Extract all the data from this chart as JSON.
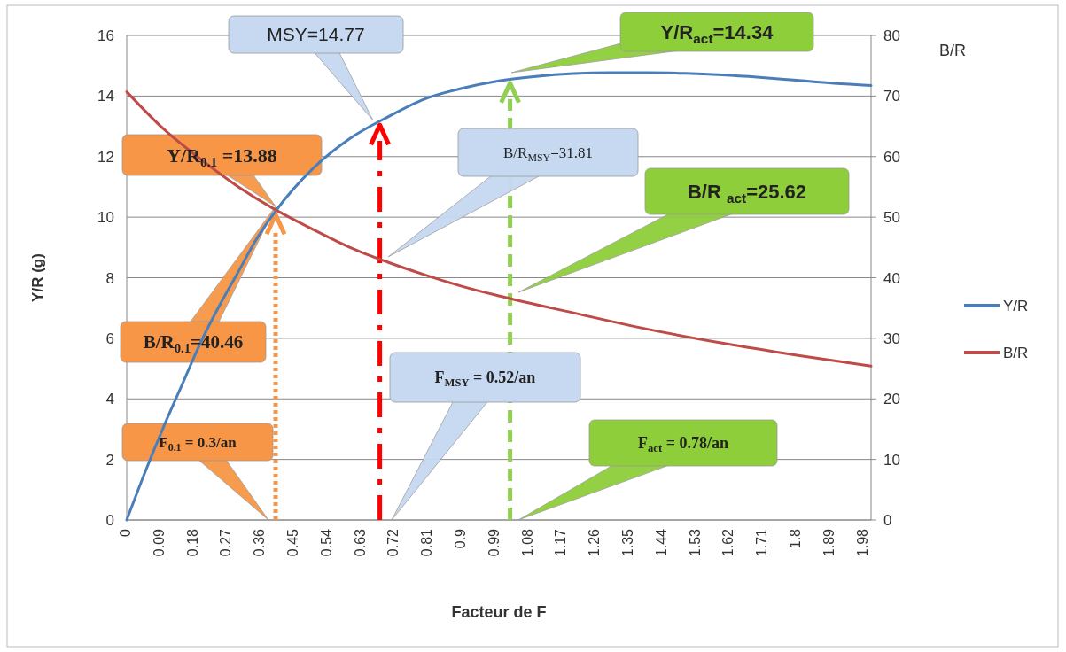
{
  "chart_data": {
    "type": "line",
    "xlabel": "Facteur de F",
    "ylabel": "Y/R (g)",
    "y2label": "B/R",
    "xlim": [
      0,
      2
    ],
    "xticks": [
      0,
      0.09,
      0.18,
      0.27,
      0.36,
      0.45,
      0.54,
      0.63,
      0.72,
      0.81,
      0.9,
      0.99,
      1.08,
      1.17,
      1.26,
      1.35,
      1.44,
      1.53,
      1.62,
      1.71,
      1.8,
      1.89,
      1.98
    ],
    "ylim": [
      0,
      16
    ],
    "yticks": [
      0,
      2,
      4,
      6,
      8,
      10,
      12,
      14,
      16
    ],
    "y2lim": [
      0,
      80
    ],
    "y2ticks": [
      0,
      10,
      20,
      30,
      40,
      50,
      60,
      70,
      80
    ],
    "grid": "y",
    "legend": "right",
    "line_style": "solid",
    "marker": "none",
    "series": [
      {
        "name": "Y/R",
        "color": "#4a7ebb",
        "x": [
          0,
          0.05,
          0.1,
          0.15,
          0.2,
          0.25,
          0.3,
          0.35,
          0.4,
          0.5,
          0.6,
          0.7,
          0.8,
          0.9,
          1.0,
          1.1,
          1.2,
          1.3,
          1.4,
          1.5,
          1.6,
          1.7,
          1.8,
          1.9,
          2.0
        ],
        "values": [
          0,
          1.6,
          3.1,
          4.5,
          5.9,
          7.1,
          8.2,
          9.3,
          10.2,
          11.6,
          12.6,
          13.3,
          13.9,
          14.25,
          14.5,
          14.65,
          14.74,
          14.77,
          14.77,
          14.75,
          14.7,
          14.62,
          14.52,
          14.42,
          14.35
        ]
      },
      {
        "name": "B/R",
        "color": "#be4b48",
        "axis": "y2",
        "x": [
          0,
          0.1,
          0.2,
          0.3,
          0.4,
          0.5,
          0.6,
          0.7,
          0.8,
          0.9,
          1.0,
          1.2,
          1.4,
          1.6,
          1.8,
          2.0
        ],
        "values": [
          70.7,
          64.5,
          59.5,
          55.0,
          51.2,
          48.0,
          45.0,
          42.6,
          40.5,
          38.6,
          37.0,
          34.2,
          31.5,
          29.2,
          27.2,
          25.4
        ]
      }
    ],
    "ref_lines": [
      {
        "axis": "x",
        "value": 0.4,
        "color": "#f79646",
        "line_style": "dotted"
      },
      {
        "axis": "x",
        "value": 0.68,
        "color": "#ff0000",
        "line_style": "dashdot"
      },
      {
        "axis": "x",
        "value": 1.03,
        "color": "#92d050",
        "line_style": "dashed"
      }
    ],
    "annotations": [
      "Y/R$_{0.1}$ =13.88",
      "B/R$_{0.1}$=40.46",
      "F$_{0.1}$ = 0.3/an",
      "MSY=14.77",
      "B/R$_{MSY}$=31.81",
      "F$_{MSY}$ = 0.52/an",
      "Y/R$_{act}$=14.34",
      "B/R $_{act}$=25.62",
      "F$_{act}$ = 0.78/an"
    ]
  }
}
